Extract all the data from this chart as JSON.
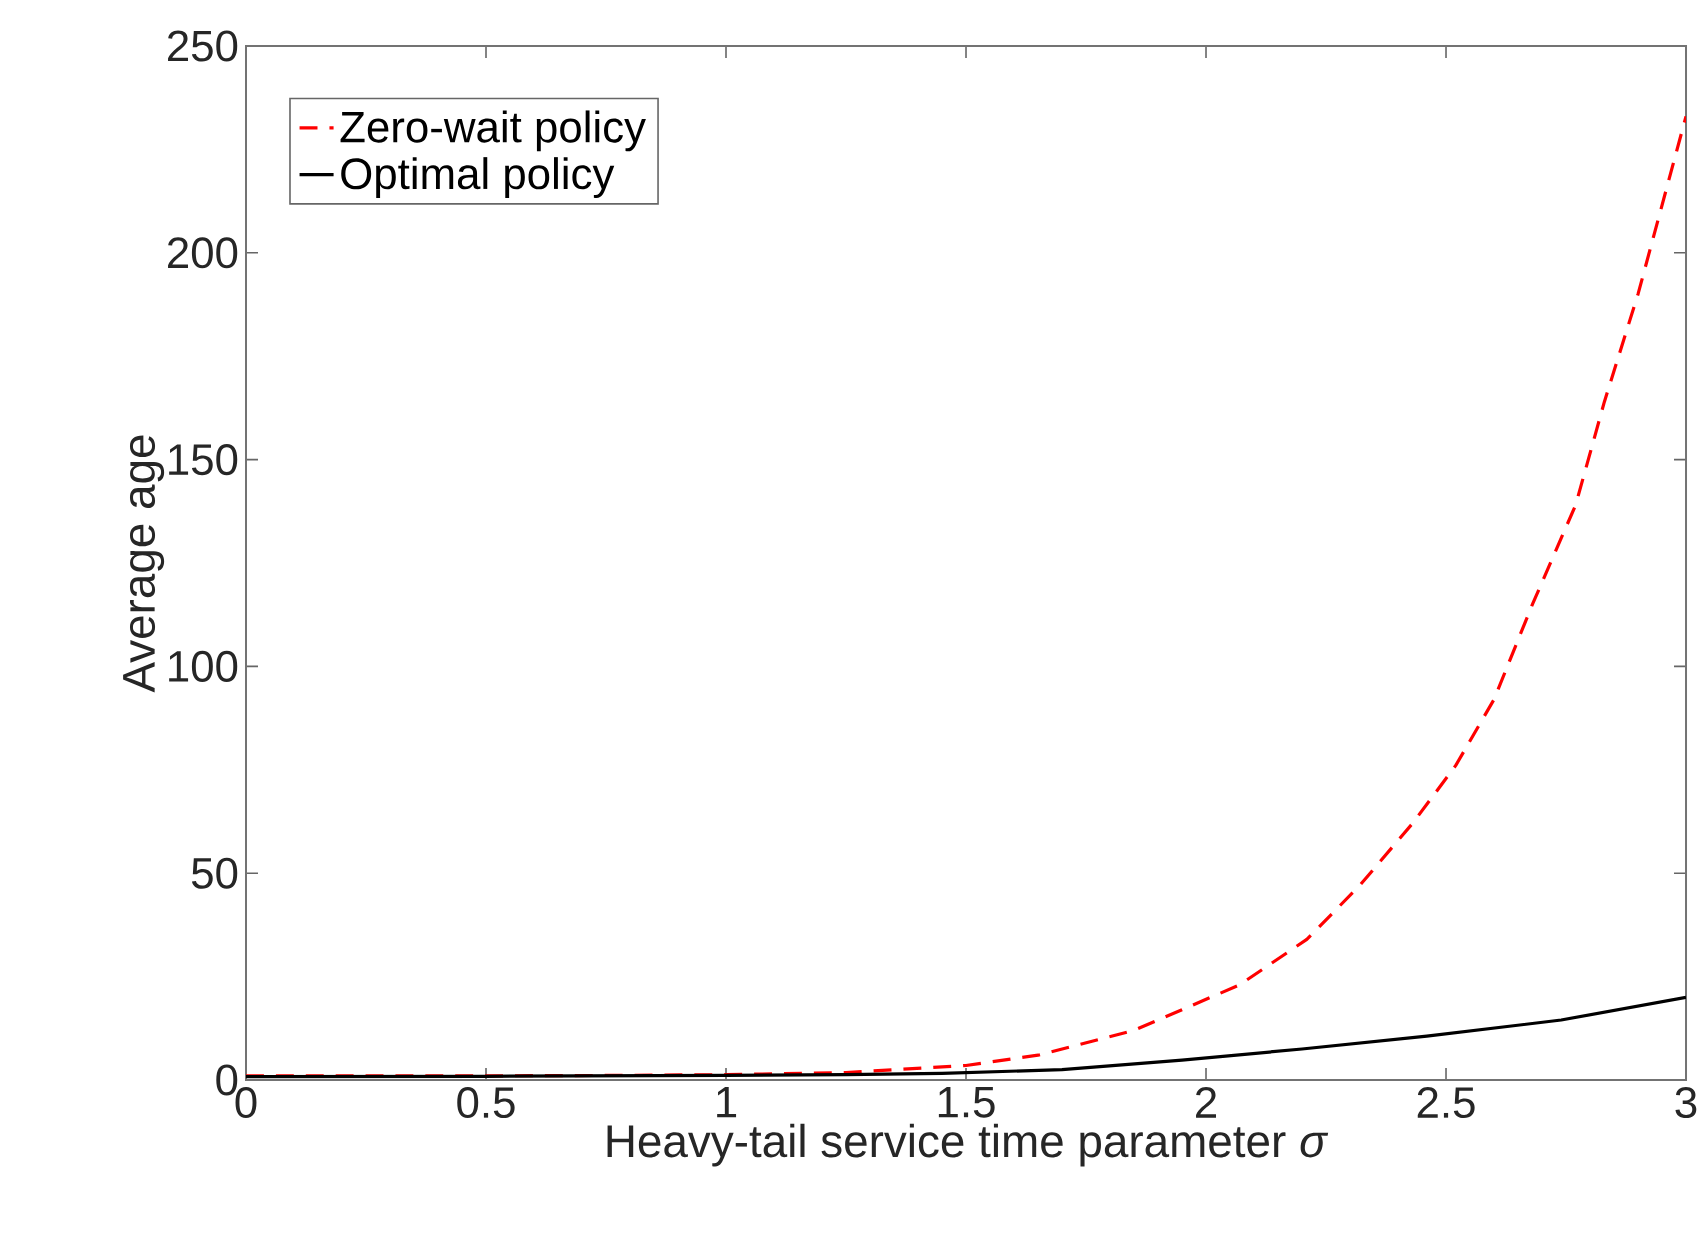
{
  "chart_data": {
    "type": "line",
    "xlabel": "Heavy-tail service time parameter *σ*",
    "ylabel": "Average age",
    "xlim": [
      0,
      3
    ],
    "ylim": [
      0,
      250
    ],
    "xticks": [
      0,
      0.5,
      1,
      1.5,
      2,
      2.5,
      3
    ],
    "yticks": [
      0,
      50,
      100,
      150,
      200,
      250
    ],
    "grid": false,
    "legend": "top left",
    "marker": "none",
    "series": [
      {
        "name": "Zero-wait policy",
        "color": "#ff0000",
        "line_style": "dashed",
        "x": [
          0,
          0.25,
          0.5,
          0.75,
          1.0,
          1.25,
          1.5,
          1.65,
          1.85,
          1.95,
          2.07,
          2.21,
          2.32,
          2.43,
          2.52,
          2.6,
          2.68,
          2.77,
          2.83,
          2.9,
          3.0
        ],
        "values": [
          1.0,
          1.0,
          1.0,
          1.1,
          1.3,
          1.8,
          3.5,
          6,
          12,
          17,
          23,
          34,
          47,
          62,
          76,
          92,
          115,
          139,
          164,
          190,
          233
        ]
      },
      {
        "name": "Optimal policy",
        "color": "#000000",
        "line_style": "solid",
        "x": [
          0,
          0.5,
          1.0,
          1.25,
          1.45,
          1.7,
          1.95,
          2.2,
          2.46,
          2.74,
          3.0
        ],
        "values": [
          0.8,
          0.9,
          1.1,
          1.3,
          1.6,
          2.5,
          4.8,
          7.5,
          10.6,
          14.5,
          20
        ]
      }
    ]
  }
}
